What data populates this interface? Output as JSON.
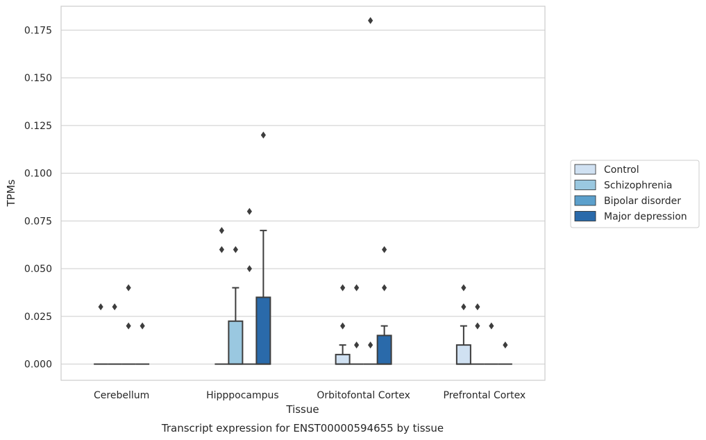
{
  "chart_data": {
    "type": "boxplot",
    "title": "",
    "caption": "Transcript expression for ENST00000594655 by tissue",
    "xlabel": "Tissue",
    "ylabel": "TPMs",
    "ylim": [
      -0.0085,
      0.1875
    ],
    "yticks": [
      0.0,
      0.025,
      0.05,
      0.075,
      0.1,
      0.125,
      0.15,
      0.175
    ],
    "ytick_labels": [
      "0.000",
      "0.025",
      "0.050",
      "0.075",
      "0.100",
      "0.125",
      "0.150",
      "0.175"
    ],
    "grid": "horizontal",
    "legend_position": "right",
    "categories": [
      "Cerebellum",
      "Hipppocampus",
      "Orbitofontal Cortex",
      "Prefrontal Cortex"
    ],
    "series": [
      {
        "name": "Control",
        "color": "#d0e1f2",
        "boxes": [
          {
            "q1": 0,
            "median": 0,
            "q3": 0,
            "whisker_low": 0,
            "whisker_high": 0,
            "outliers": [
              0.03
            ]
          },
          {
            "q1": 0,
            "median": 0,
            "q3": 0,
            "whisker_low": 0,
            "whisker_high": 0,
            "outliers": [
              0.06,
              0.07
            ]
          },
          {
            "q1": 0,
            "median": 0,
            "q3": 0.005,
            "whisker_low": 0,
            "whisker_high": 0.01,
            "outliers": [
              0.02,
              0.04
            ]
          },
          {
            "q1": 0,
            "median": 0,
            "q3": 0.01,
            "whisker_low": 0,
            "whisker_high": 0.02,
            "outliers": [
              0.03,
              0.04
            ]
          }
        ]
      },
      {
        "name": "Schizophrenia",
        "color": "#9ac8e0",
        "boxes": [
          {
            "q1": 0,
            "median": 0,
            "q3": 0,
            "whisker_low": 0,
            "whisker_high": 0,
            "outliers": [
              0.03
            ]
          },
          {
            "q1": 0,
            "median": 0,
            "q3": 0.0225,
            "whisker_low": 0,
            "whisker_high": 0.04,
            "outliers": [
              0.06
            ]
          },
          {
            "q1": 0,
            "median": 0,
            "q3": 0,
            "whisker_low": 0,
            "whisker_high": 0,
            "outliers": [
              0.01,
              0.04
            ]
          },
          {
            "q1": 0,
            "median": 0,
            "q3": 0,
            "whisker_low": 0,
            "whisker_high": 0,
            "outliers": [
              0.02,
              0.03
            ]
          }
        ]
      },
      {
        "name": "Bipolar disorder",
        "color": "#5ca0cc",
        "boxes": [
          {
            "q1": 0,
            "median": 0,
            "q3": 0,
            "whisker_low": 0,
            "whisker_high": 0,
            "outliers": [
              0.02,
              0.04
            ]
          },
          {
            "q1": 0,
            "median": 0,
            "q3": 0,
            "whisker_low": 0,
            "whisker_high": 0,
            "outliers": [
              0.05,
              0.08
            ]
          },
          {
            "q1": 0,
            "median": 0,
            "q3": 0,
            "whisker_low": 0,
            "whisker_high": 0,
            "outliers": [
              0.01,
              0.18
            ]
          },
          {
            "q1": 0,
            "median": 0,
            "q3": 0,
            "whisker_low": 0,
            "whisker_high": 0,
            "outliers": [
              0.02
            ]
          }
        ]
      },
      {
        "name": "Major depression",
        "color": "#2a6aaa",
        "boxes": [
          {
            "q1": 0,
            "median": 0,
            "q3": 0,
            "whisker_low": 0,
            "whisker_high": 0,
            "outliers": [
              0.02
            ]
          },
          {
            "q1": 0,
            "median": 0,
            "q3": 0.035,
            "whisker_low": 0,
            "whisker_high": 0.07,
            "outliers": [
              0.12
            ]
          },
          {
            "q1": 0,
            "median": 0,
            "q3": 0.015,
            "whisker_low": 0,
            "whisker_high": 0.02,
            "outliers": [
              0.04,
              0.06
            ]
          },
          {
            "q1": 0,
            "median": 0,
            "q3": 0,
            "whisker_low": 0,
            "whisker_high": 0,
            "outliers": [
              0.01
            ]
          }
        ]
      }
    ]
  }
}
